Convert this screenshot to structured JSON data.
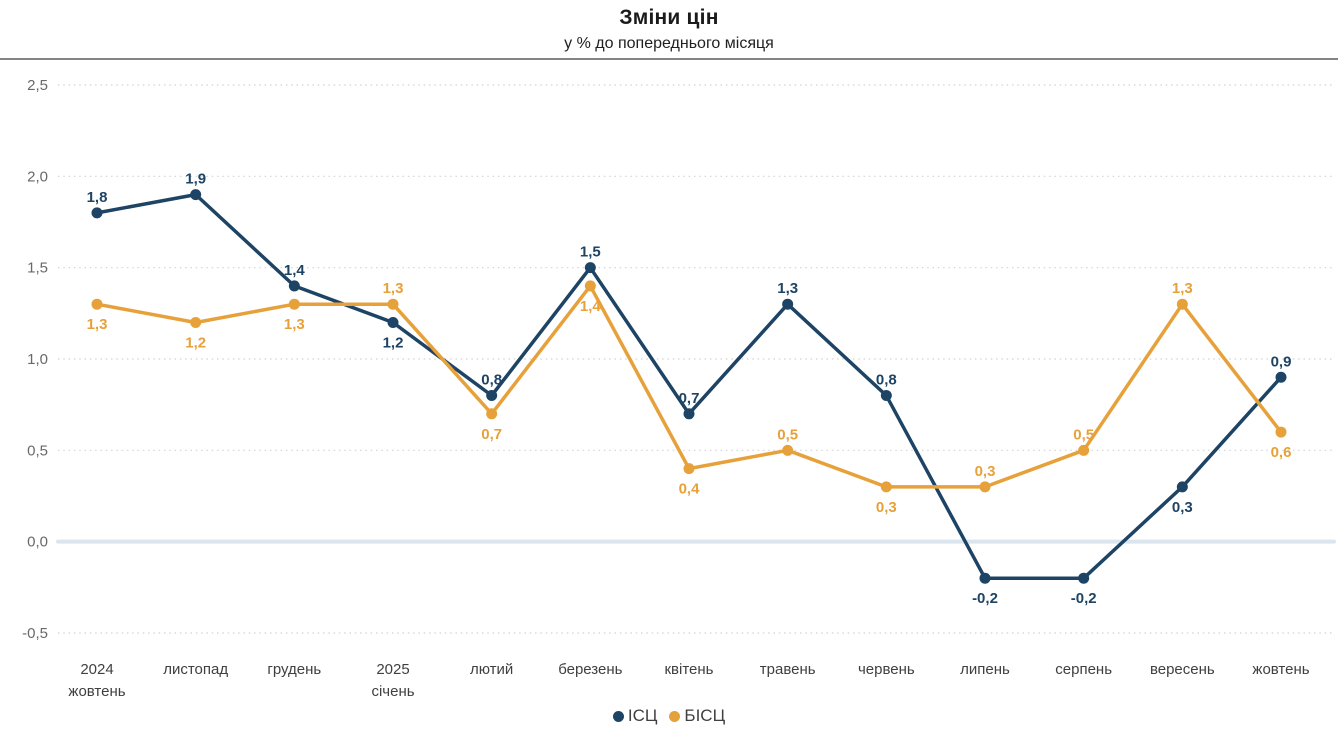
{
  "header": {
    "title": "Зміни цін",
    "subtitle": "у % до попереднього місяця"
  },
  "colors": {
    "icp_series": "#1e4465",
    "bicp_series": "#e7a13b",
    "gridline": "#d2d2d2",
    "zero_line": "#dbe5ee",
    "y_axis_text": "#696969",
    "x_axis_text": "#404040",
    "separator": "#848484",
    "background": "#ffffff"
  },
  "chart_data": {
    "type": "line",
    "title": "Зміни цін",
    "subtitle": "у % до попереднього місяця",
    "categories": [
      "2024\nжовтень",
      "листопад",
      "грудень",
      "2025\nсічень",
      "лютий",
      "березень",
      "квітень",
      "травень",
      "червень",
      "липень",
      "серпень",
      "вересень",
      "жовтень"
    ],
    "series": [
      {
        "name": "ІСЦ",
        "color": "#1e4465",
        "values": [
          1.8,
          1.9,
          1.4,
          1.2,
          0.8,
          1.5,
          0.7,
          1.3,
          0.8,
          -0.2,
          -0.2,
          0.3,
          0.9
        ],
        "labels": [
          "1,8",
          "1,9",
          "1,4",
          "1,2",
          "0,8",
          "1,5",
          "0,7",
          "1,3",
          "0,8",
          "-0,2",
          "-0,2",
          "0,3",
          "0,9"
        ],
        "label_positions": [
          "above",
          "above",
          "above",
          "below",
          "above",
          "above",
          "above",
          "above",
          "above",
          "below",
          "below",
          "below",
          "above"
        ]
      },
      {
        "name": "БІСЦ",
        "color": "#e7a13b",
        "values": [
          1.3,
          1.2,
          1.3,
          1.3,
          0.7,
          1.4,
          0.4,
          0.5,
          0.3,
          0.3,
          0.5,
          1.3,
          0.6
        ],
        "labels": [
          "1,3",
          "1,2",
          "1,3",
          "1,3",
          "0,7",
          "1,4",
          "0,4",
          "0,5",
          "0,3",
          "0,3",
          "0,5",
          "1,3",
          "0,6"
        ],
        "label_positions": [
          "below",
          "below",
          "below",
          "above",
          "below",
          "below",
          "below",
          "above",
          "below",
          "above",
          "above",
          "above",
          "below"
        ]
      }
    ],
    "y_axis": {
      "min": -0.5,
      "max": 2.5,
      "step": 0.5,
      "tick_labels": [
        "2,5",
        "2,0",
        "1,5",
        "1,0",
        "0,5",
        "0,0",
        "-0,5"
      ]
    },
    "grid": "dotted-horizontal",
    "legend_position": "bottom-center"
  }
}
